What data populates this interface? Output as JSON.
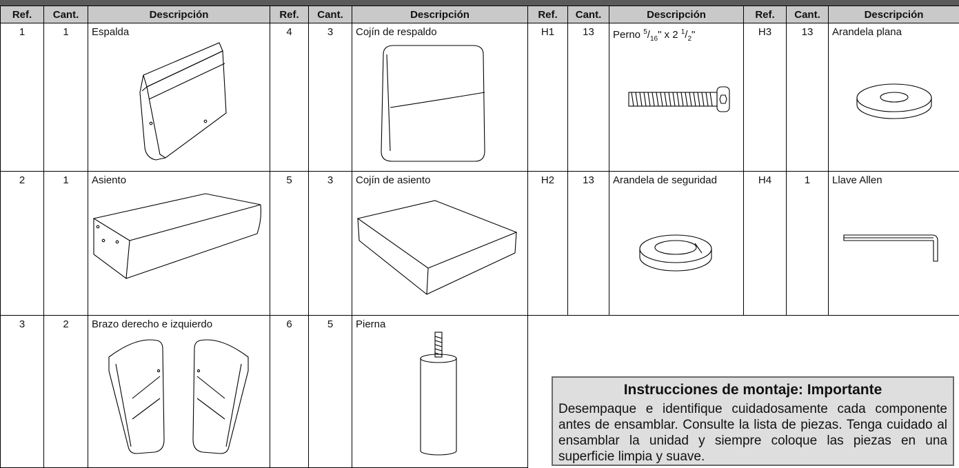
{
  "table": {
    "headers": [
      "Ref.",
      "Cant.",
      "Descripción",
      "Ref.",
      "Cant.",
      "Descripción",
      "Ref.",
      "Cant.",
      "Descripción",
      "Ref.",
      "Cant.",
      "Descripción"
    ],
    "rows": [
      [
        {
          "ref": "1",
          "qty": "1",
          "desc": "Espalda"
        },
        {
          "ref": "4",
          "qty": "3",
          "desc": "Cojín de respaldo"
        },
        {
          "ref": "H1",
          "qty": "13",
          "desc": [
            "Perno ",
            "5",
            "/",
            "16",
            "\" x 2 ",
            "1",
            "/",
            "2",
            "\""
          ]
        },
        {
          "ref": "H3",
          "qty": "13",
          "desc": "Arandela plana"
        }
      ],
      [
        {
          "ref": "2",
          "qty": "1",
          "desc": "Asiento"
        },
        {
          "ref": "5",
          "qty": "3",
          "desc": "Cojín de asiento"
        },
        {
          "ref": "H2",
          "qty": "13",
          "desc": "Arandela de seguridad"
        },
        {
          "ref": "H4",
          "qty": "1",
          "desc": "Llave Allen"
        }
      ],
      [
        {
          "ref": "3",
          "qty": "2",
          "desc": "Brazo derecho e izquierdo"
        },
        {
          "ref": "6",
          "qty": "5",
          "desc": "Pierna"
        }
      ]
    ]
  },
  "instructions": {
    "title": "Instrucciones de montaje: Importante",
    "body": "Desempaque e identifique cuidadosamente cada componente antes de ensamblar. Consulte la lista de piezas. Tenga cuidado al ensamblar la unidad y siempre coloque las piezas en una superficie limpia y suave."
  }
}
